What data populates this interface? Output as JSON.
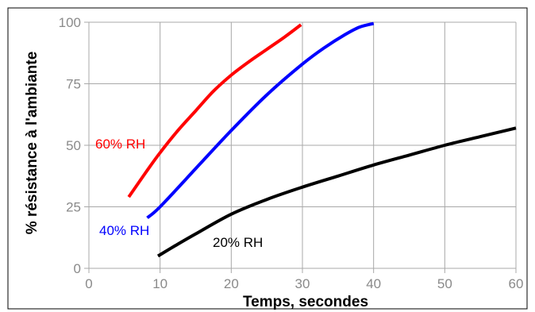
{
  "chart_data": {
    "type": "line",
    "title": "",
    "xlabel": "Temps, secondes",
    "ylabel": "% résistance à l'ambiante",
    "xlim": [
      0,
      60
    ],
    "ylim": [
      0,
      100
    ],
    "xticks": [
      "0",
      "10",
      "20",
      "30",
      "40",
      "50",
      "60"
    ],
    "yticks": [
      "0",
      "25",
      "50",
      "75",
      "100"
    ],
    "grid": true,
    "series": [
      {
        "name": "60% RH",
        "color": "#ff0000",
        "x": [
          5.6,
          8,
          10,
          12.5,
          15,
          17.5,
          20,
          22.5,
          25,
          27.5,
          29.8
        ],
        "y": [
          29,
          39,
          47,
          56,
          64,
          72,
          78.5,
          84,
          89,
          94,
          99
        ]
      },
      {
        "name": "40% RH",
        "color": "#0000ff",
        "x": [
          8.2,
          10,
          15,
          20,
          25,
          30,
          33,
          36,
          38,
          40
        ],
        "y": [
          20.5,
          25,
          40.5,
          56,
          70.5,
          83,
          89.5,
          95,
          98,
          99.5
        ]
      },
      {
        "name": "20% RH",
        "color": "#000000",
        "x": [
          9.7,
          12,
          15,
          20,
          25,
          30,
          35,
          40,
          45,
          50,
          55,
          60
        ],
        "y": [
          5,
          9,
          14,
          22,
          28,
          33,
          37.5,
          42,
          46,
          50,
          53.5,
          57
        ]
      }
    ]
  }
}
